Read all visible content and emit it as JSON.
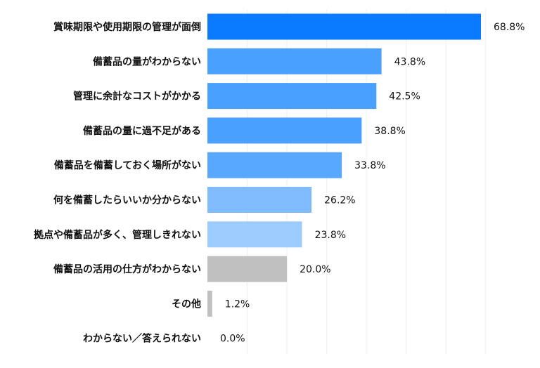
{
  "chart_data": {
    "type": "bar",
    "orientation": "horizontal",
    "categories": [
      "賞味期限や使用期限の管理が面倒",
      "備蓄品の量がわからない",
      "管理に余計なコストがかかる",
      "備蓄品の量に過不足がある",
      "備蓄品を備蓄しておく場所がない",
      "何を備蓄したらいいか分からない",
      "拠点や備蓄品が多く、管理しきれない",
      "備蓄品の活用の仕方がわからない",
      "その他",
      "わからない／答えられない"
    ],
    "values": [
      68.8,
      43.8,
      42.5,
      38.8,
      33.8,
      26.2,
      23.8,
      20.0,
      1.2,
      0.0
    ],
    "value_labels": [
      "68.8%",
      "43.8%",
      "42.5%",
      "38.8%",
      "33.8%",
      "26.2%",
      "23.8%",
      "20.0%",
      "1.2%",
      "0.0%"
    ],
    "colors": [
      "#0a7aff",
      "#4aa0ff",
      "#4aa0ff",
      "#4aa0ff",
      "#58a8ff",
      "#80baff",
      "#9ccbff",
      "#c0c0c0",
      "#c0c0c0",
      "#c0c0c0"
    ],
    "xlim": [
      0,
      100
    ],
    "grid": true,
    "legend": false
  }
}
